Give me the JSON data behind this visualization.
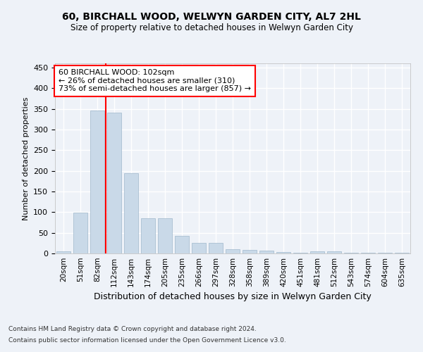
{
  "title": "60, BIRCHALL WOOD, WELWYN GARDEN CITY, AL7 2HL",
  "subtitle": "Size of property relative to detached houses in Welwyn Garden City",
  "xlabel": "Distribution of detached houses by size in Welwyn Garden City",
  "ylabel": "Number of detached properties",
  "bar_color": "#c9d9e8",
  "bar_edge_color": "#a0b8cc",
  "categories": [
    "20sqm",
    "51sqm",
    "82sqm",
    "112sqm",
    "143sqm",
    "174sqm",
    "205sqm",
    "235sqm",
    "266sqm",
    "297sqm",
    "328sqm",
    "358sqm",
    "389sqm",
    "420sqm",
    "451sqm",
    "481sqm",
    "512sqm",
    "543sqm",
    "574sqm",
    "604sqm",
    "635sqm"
  ],
  "values": [
    5,
    98,
    345,
    340,
    195,
    85,
    85,
    43,
    26,
    25,
    11,
    8,
    6,
    3,
    2,
    5,
    5,
    1,
    2,
    1,
    2
  ],
  "ylim": [
    0,
    460
  ],
  "yticks": [
    0,
    50,
    100,
    150,
    200,
    250,
    300,
    350,
    400,
    450
  ],
  "vline_x": 2.5,
  "annotation_line1": "60 BIRCHALL WOOD: 102sqm",
  "annotation_line2": "← 26% of detached houses are smaller (310)",
  "annotation_line3": "73% of semi-detached houses are larger (857) →",
  "annotation_box_color": "white",
  "annotation_box_edgecolor": "red",
  "vline_color": "red",
  "background_color": "#eef2f8",
  "grid_color": "white",
  "footer_line1": "Contains HM Land Registry data © Crown copyright and database right 2024.",
  "footer_line2": "Contains public sector information licensed under the Open Government Licence v3.0."
}
